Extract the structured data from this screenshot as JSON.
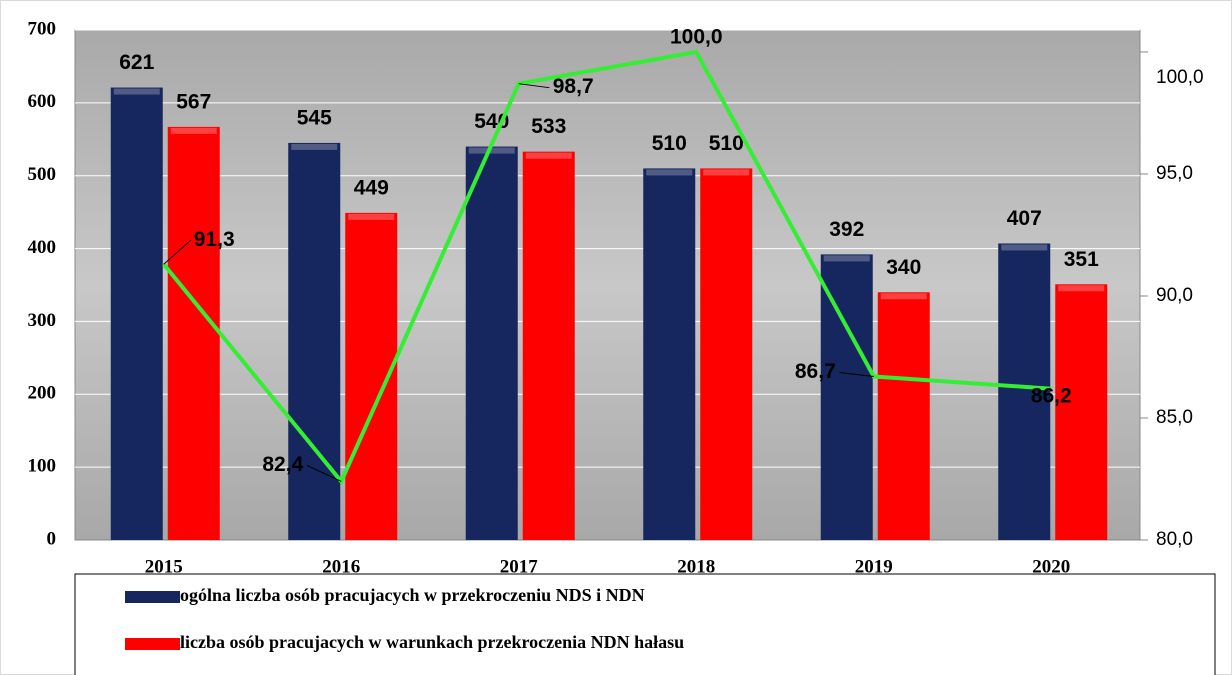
{
  "chart_data": {
    "type": "bar",
    "categories": [
      "2015",
      "2016",
      "2017",
      "2018",
      "2019",
      "2020"
    ],
    "series": [
      {
        "name": "ogólna liczba osób pracujacych w przekroczeniu NDS i NDN",
        "color": "#16265e",
        "values": [
          621,
          545,
          540,
          510,
          392,
          407
        ]
      },
      {
        "name": "liczba osób pracujacych w warunkach przekroczenia NDN hałasu",
        "color": "#ff0000",
        "values": [
          567,
          449,
          533,
          510,
          340,
          351
        ]
      },
      {
        "type": "line",
        "axis": "y2",
        "color": "#33ee33",
        "values": [
          91.3,
          82.4,
          98.7,
          100.0,
          86.7,
          86.2
        ],
        "value_labels": [
          "91,3",
          "82,4",
          "98,7",
          "100,0",
          "86,7",
          "86,2"
        ]
      }
    ],
    "ylim": [
      0,
      700
    ],
    "yticks": [
      0,
      100,
      200,
      300,
      400,
      500,
      600,
      700
    ],
    "y2lim": [
      80,
      100.9
    ],
    "y2ticks": [
      {
        "value": 80,
        "label": "80,0"
      },
      {
        "value": 85,
        "label": "85,0"
      },
      {
        "value": 90,
        "label": "90,0"
      },
      {
        "value": 95,
        "label": "95,0"
      },
      {
        "value": 100,
        "label": "100,0"
      }
    ],
    "grid": true
  }
}
